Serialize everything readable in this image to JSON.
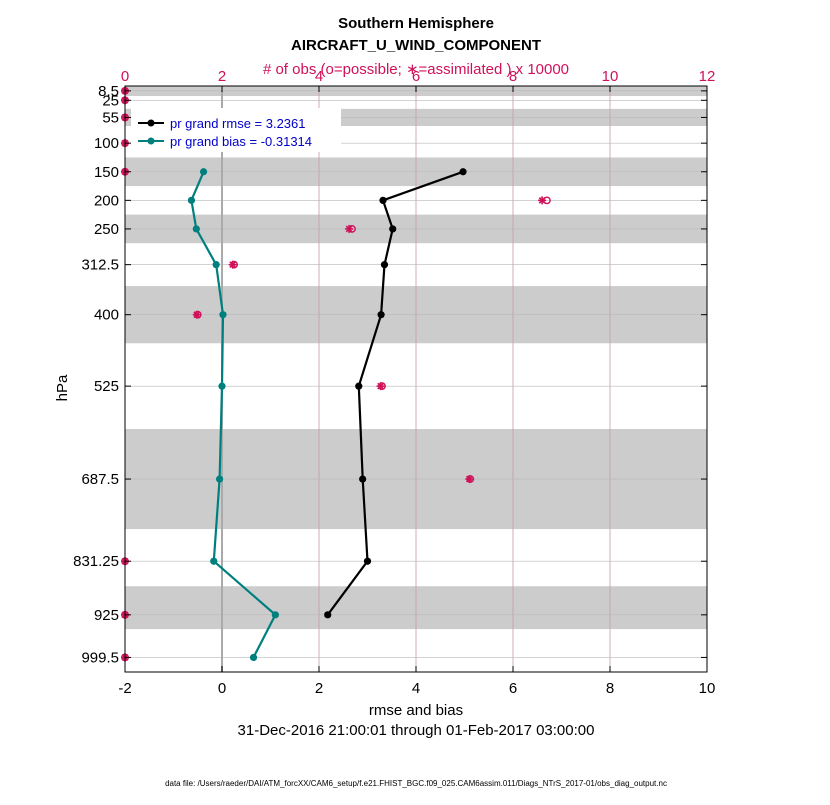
{
  "chart_data": {
    "type": "line",
    "title": "Southern Hemisphere",
    "subtitle": "AIRCRAFT_U_WIND_COMPONENT",
    "top_axis_label": "# of obs (o=possible; ∗=assimilated ) x 10000",
    "xlabel": "rmse and bias",
    "ylabel": "hPa",
    "date_range": "31-Dec-2016 21:00:01 through 01-Feb-2017 03:00:00",
    "footer": "data file: /Users/raeder/DAI/ATM_forcXX/CAM6_setup/f.e21.FHIST_BGC.f09_025.CAM6assim.011/Diags_NTrS_2017-01/obs_diag_output.nc",
    "xlim": [
      -2,
      10
    ],
    "xticks": [
      -2,
      0,
      2,
      4,
      6,
      8,
      10
    ],
    "xtick_labels": [
      "-2",
      "0",
      "2",
      "4",
      "6",
      "8",
      "10"
    ],
    "top_xlim": [
      0,
      12
    ],
    "top_xticks": [
      0,
      2,
      4,
      6,
      8,
      10,
      12
    ],
    "top_xtick_labels": [
      "0",
      "2",
      "4",
      "6",
      "8",
      "10",
      "12"
    ],
    "ylim": [
      1025,
      0
    ],
    "plot_ymax": 1025,
    "levels": [
      8.5,
      25,
      55,
      100,
      150,
      200,
      250,
      312.5,
      400,
      525,
      687.5,
      831.25,
      925,
      999.5
    ],
    "level_labels": [
      "8.5",
      "25",
      "55",
      "100",
      "150",
      "200",
      "250",
      "312.5",
      "400",
      "525",
      "687.5",
      "831.25",
      "925",
      "999.5"
    ],
    "bands": [
      [
        0,
        17.5
      ],
      [
        40,
        70
      ],
      [
        125,
        175
      ],
      [
        225,
        275
      ],
      [
        350,
        450
      ],
      [
        600,
        775
      ],
      [
        875,
        950
      ]
    ],
    "series": [
      {
        "name": "rmse",
        "legend": "pr grand rmse = 3.2361",
        "color": "#000000",
        "points": [
          [
            4.97,
            150
          ],
          [
            3.32,
            200
          ],
          [
            3.52,
            250
          ],
          [
            3.35,
            312.5
          ],
          [
            3.28,
            400
          ],
          [
            2.82,
            525
          ],
          [
            2.9,
            687.5
          ],
          [
            3.0,
            831.25
          ],
          [
            2.18,
            925
          ]
        ]
      },
      {
        "name": "bias",
        "legend": "pr grand bias = -0.31314",
        "color": "#007f7f",
        "points": [
          [
            -0.38,
            150
          ],
          [
            -0.63,
            200
          ],
          [
            -0.53,
            250
          ],
          [
            -0.12,
            312.5
          ],
          [
            0.02,
            400
          ],
          [
            0.0,
            525
          ],
          [
            -0.05,
            687.5
          ],
          [
            -0.17,
            831.25
          ],
          [
            1.1,
            925
          ],
          [
            0.65,
            999.5
          ]
        ]
      }
    ],
    "obs": {
      "color": "#d0115a",
      "points": [
        {
          "level": 8.5,
          "possible": 0.0,
          "assimilated": 0.0
        },
        {
          "level": 25,
          "possible": 0.0,
          "assimilated": 0.0
        },
        {
          "level": 55,
          "possible": 0.0,
          "assimilated": 0.0
        },
        {
          "level": 100,
          "possible": 0.0,
          "assimilated": 0.0
        },
        {
          "level": 150,
          "possible": 0.0,
          "assimilated": 0.0
        },
        {
          "level": 200,
          "possible": 8.7,
          "assimilated": 8.6
        },
        {
          "level": 250,
          "possible": 4.68,
          "assimilated": 4.62
        },
        {
          "level": 312.5,
          "possible": 2.25,
          "assimilated": 2.22
        },
        {
          "level": 400,
          "possible": 1.5,
          "assimilated": 1.48
        },
        {
          "level": 525,
          "possible": 5.3,
          "assimilated": 5.27
        },
        {
          "level": 687.5,
          "possible": 7.12,
          "assimilated": 7.1
        },
        {
          "level": 831.25,
          "possible": 0.0,
          "assimilated": 0.0
        },
        {
          "level": 925,
          "possible": 0.0,
          "assimilated": 0.0
        },
        {
          "level": 999.5,
          "possible": 0.0,
          "assimilated": 0.0
        }
      ]
    }
  }
}
